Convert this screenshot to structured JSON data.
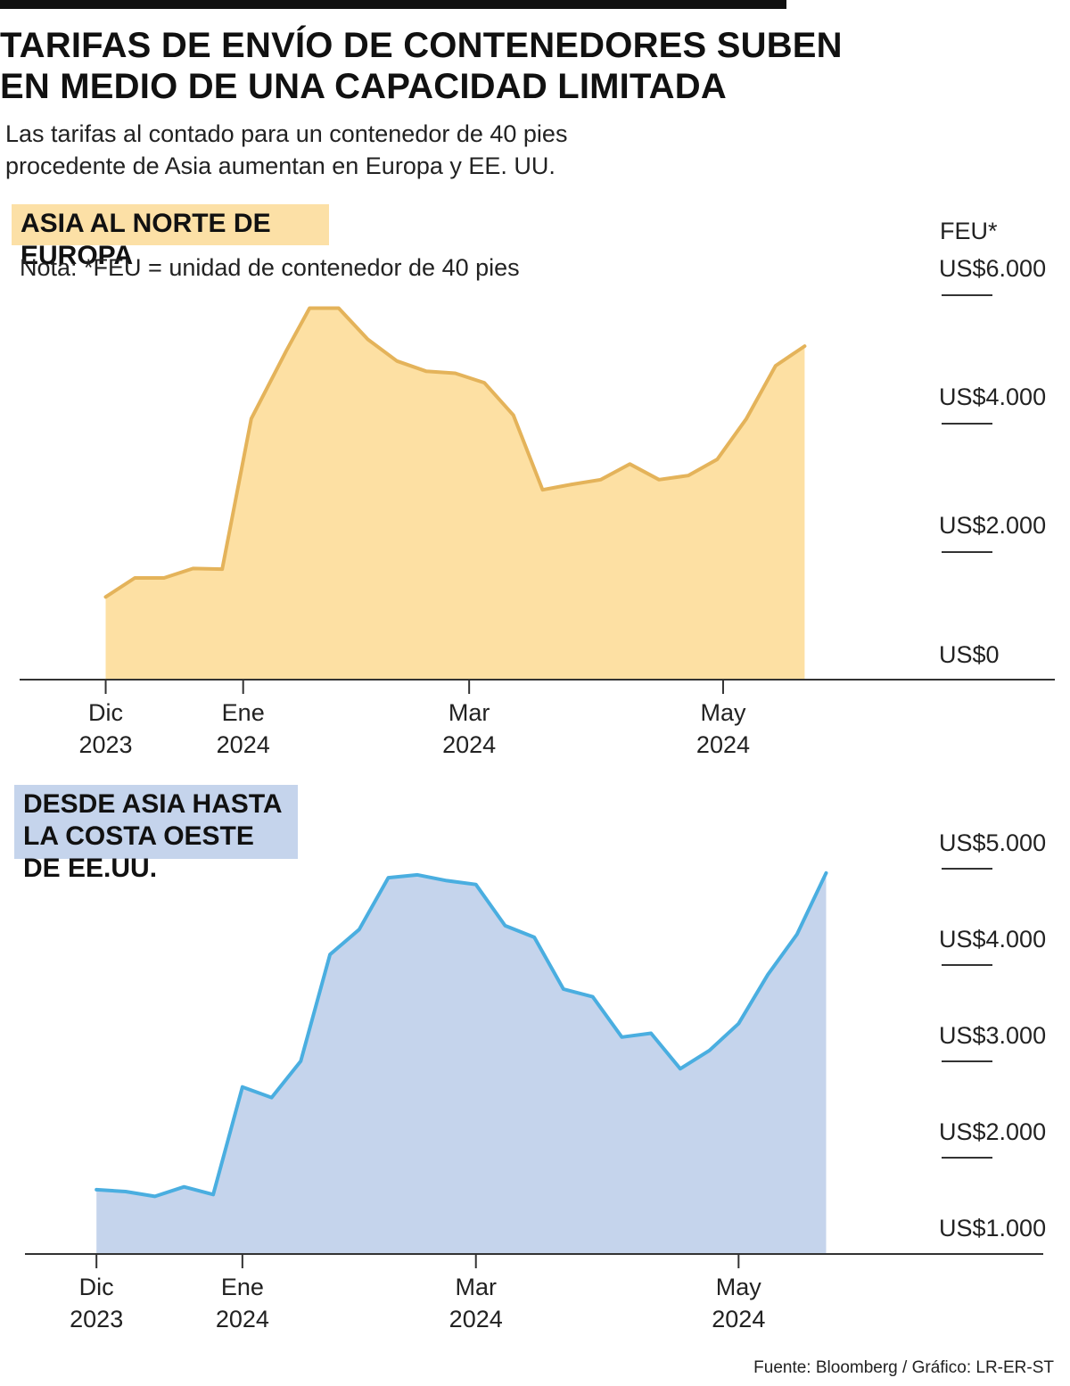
{
  "header": {
    "title": "TARIFAS DE ENVÍO DE CONTENEDORES SUBEN EN MEDIO DE UNA CAPACIDAD LIMITADA",
    "subtitle": "Las tarifas al contado para un contenedor de 40 pies procedente de Asia aumentan en Europa y EE. UU."
  },
  "colors": {
    "europe_line": "#e4b35a",
    "europe_fill": "#fde0a3",
    "us_line": "#4aaee0",
    "us_fill": "#c5d4ec",
    "axis": "#333333"
  },
  "footer": {
    "source": "Fuente: Bloomberg / Gráfico: LR-ER-ST"
  },
  "chart_data": [
    {
      "type": "area",
      "title": "ASIA AL NORTE DE EUROPA",
      "note": "Nota: *FEU = unidad de contenedor de 40 pies",
      "unit_label": "FEU*",
      "ylim": [
        0,
        6000
      ],
      "y_ticks": [
        0,
        2000,
        4000,
        6000
      ],
      "y_tick_labels": [
        "US$0",
        "US$2.000",
        "US$4.000",
        "US$6.000"
      ],
      "xlim": [
        -0.05,
        6.9
      ],
      "x_ticks": [
        {
          "x": 0,
          "month": "Dic",
          "year": "2023"
        },
        {
          "x": 1.18,
          "month": "Ene",
          "year": "2024"
        },
        {
          "x": 3.12,
          "month": "Mar",
          "year": "2024"
        },
        {
          "x": 5.3,
          "month": "May",
          "year": "2024"
        }
      ],
      "x": [
        0,
        0.25,
        0.5,
        0.75,
        1.0,
        1.25,
        1.55,
        1.75,
        2.0,
        2.25,
        2.5,
        2.75,
        3.0,
        3.25,
        3.5,
        3.75,
        4.0,
        4.25,
        4.5,
        4.75,
        5.0,
        5.25,
        5.5,
        5.75,
        6.0
      ],
      "values": [
        1220,
        1500,
        1500,
        1640,
        1630,
        3850,
        4850,
        5480,
        5480,
        5020,
        4700,
        4550,
        4520,
        4380,
        3900,
        2800,
        2880,
        2950,
        3180,
        2950,
        3010,
        3250,
        3850,
        4630,
        4920
      ]
    },
    {
      "type": "area",
      "title": "DESDE ASIA HASTA LA COSTA OESTE DE EE.UU.",
      "ylim": [
        800,
        5000
      ],
      "y_ticks": [
        1000,
        2000,
        3000,
        4000,
        5000
      ],
      "y_tick_labels": [
        "US$1.000",
        "US$2.000",
        "US$3.000",
        "US$4.000",
        "US$5.000"
      ],
      "xlim": [
        -0.2,
        7.3
      ],
      "x_ticks": [
        {
          "x": 0,
          "month": "Dic",
          "year": "2023"
        },
        {
          "x": 1.25,
          "month": "Ene",
          "year": "2024"
        },
        {
          "x": 3.25,
          "month": "Mar",
          "year": "2024"
        },
        {
          "x": 5.5,
          "month": "May",
          "year": "2024"
        }
      ],
      "x": [
        0,
        0.25,
        0.5,
        0.75,
        1.0,
        1.25,
        1.5,
        1.75,
        2.0,
        2.25,
        2.5,
        2.75,
        3.0,
        3.25,
        3.5,
        3.75,
        4.0,
        4.25,
        4.5,
        4.75,
        5.0,
        5.25,
        5.5,
        5.75,
        6.0,
        6.25
      ],
      "values": [
        1470,
        1450,
        1400,
        1500,
        1420,
        2540,
        2430,
        2810,
        3920,
        4180,
        4720,
        4750,
        4690,
        4650,
        4220,
        4100,
        3560,
        3480,
        3060,
        3100,
        2730,
        2920,
        3200,
        3710,
        4130,
        4770
      ]
    }
  ]
}
